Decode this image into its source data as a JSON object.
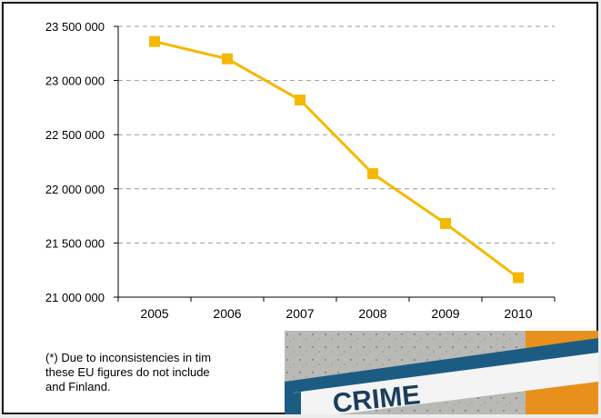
{
  "chart_data": {
    "type": "line",
    "title": "",
    "xlabel": "",
    "ylabel": "",
    "categories": [
      "2005",
      "2006",
      "2007",
      "2008",
      "2009",
      "2010"
    ],
    "series": [
      {
        "values": [
          23360000,
          23200000,
          22820000,
          22140000,
          21680000,
          21180000
        ]
      }
    ],
    "ylim": [
      21000000,
      23500000
    ],
    "yticks": [
      21000000,
      21500000,
      22000000,
      22500000,
      23000000,
      23500000
    ],
    "ytick_labels": [
      "21 000 000",
      "21 500 000",
      "22 000 000",
      "22 500 000",
      "23 000 000",
      "23 500 000"
    ],
    "grid": "horizontal dashed",
    "series_color": "#F5B800",
    "marker": "square"
  },
  "footnote": {
    "lines": [
      "(*) Due to inconsistencies in tim",
      "these EU figures do not include",
      "and Finland."
    ]
  },
  "overlay_image": {
    "label": "CRIME"
  }
}
